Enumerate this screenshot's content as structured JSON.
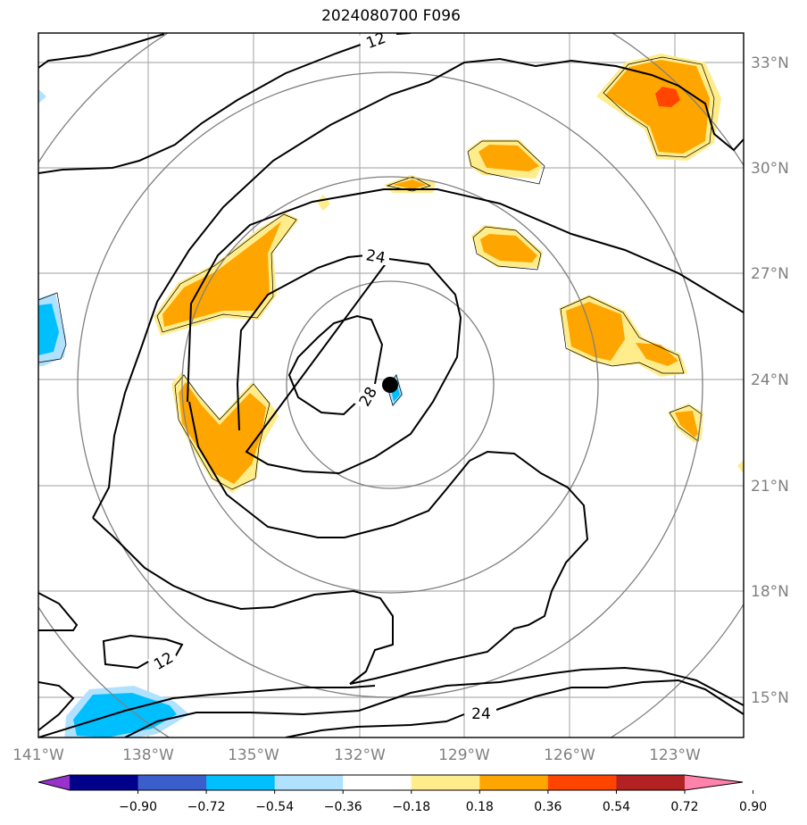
{
  "title": "2024080700 F096",
  "longitude_labels": [
    "141°W",
    "138°W",
    "135°W",
    "132°W",
    "129°W",
    "126°W",
    "123°W"
  ],
  "latitude_labels": [
    "33°N",
    "30°N",
    "27°N",
    "24°N",
    "21°N",
    "18°N",
    "15°N"
  ],
  "contour_labels": [
    "12",
    "24",
    "28",
    "12",
    "24"
  ],
  "colorbar": {
    "colors": [
      "#9932cc",
      "#00008b",
      "#3a5fcd",
      "#00bfff",
      "#b0e2ff",
      "#ffffff",
      "#ffec8b",
      "#ffa500",
      "#ff4500",
      "#b22222",
      "#ff82ab"
    ],
    "tick_labels": [
      "−0.90",
      "−0.72",
      "−0.54",
      "−0.36",
      "−0.18",
      "0.18",
      "0.36",
      "0.54",
      "0.72",
      "0.90"
    ]
  },
  "storm_center": {
    "lon": -131.1,
    "lat": 23.8
  }
}
